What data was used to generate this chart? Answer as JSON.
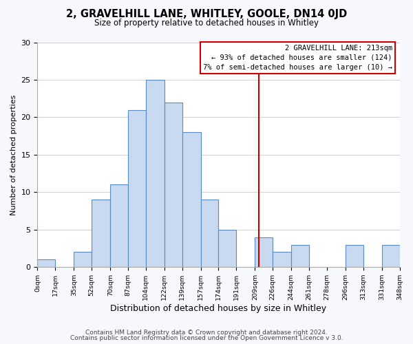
{
  "title": "2, GRAVELHILL LANE, WHITLEY, GOOLE, DN14 0JD",
  "subtitle": "Size of property relative to detached houses in Whitley",
  "xlabel": "Distribution of detached houses by size in Whitley",
  "ylabel": "Number of detached properties",
  "footnote1": "Contains HM Land Registry data © Crown copyright and database right 2024.",
  "footnote2": "Contains public sector information licensed under the Open Government Licence v 3.0.",
  "bar_edges": [
    0,
    17,
    35,
    52,
    70,
    87,
    104,
    122,
    139,
    157,
    174,
    191,
    209,
    226,
    244,
    261,
    278,
    296,
    313,
    331,
    348
  ],
  "bar_heights": [
    1,
    0,
    2,
    9,
    11,
    21,
    25,
    22,
    18,
    9,
    5,
    0,
    4,
    2,
    3,
    0,
    0,
    3,
    0,
    3
  ],
  "tick_labels": [
    "0sqm",
    "17sqm",
    "35sqm",
    "52sqm",
    "70sqm",
    "87sqm",
    "104sqm",
    "122sqm",
    "139sqm",
    "157sqm",
    "174sqm",
    "191sqm",
    "209sqm",
    "226sqm",
    "244sqm",
    "261sqm",
    "278sqm",
    "296sqm",
    "313sqm",
    "331sqm",
    "348sqm"
  ],
  "bar_color": "#c9d9ef",
  "bar_edge_color": "#5a8ac6",
  "vline_x": 213,
  "vline_color": "#cc0000",
  "annotation_title": "2 GRAVELHILL LANE: 213sqm",
  "annotation_line1": "← 93% of detached houses are smaller (124)",
  "annotation_line2": "7% of semi-detached houses are larger (10) →",
  "ylim": [
    0,
    30
  ],
  "xlim": [
    0,
    348
  ],
  "background_color": "#f7f8fc",
  "plot_background_color": "#ffffff"
}
